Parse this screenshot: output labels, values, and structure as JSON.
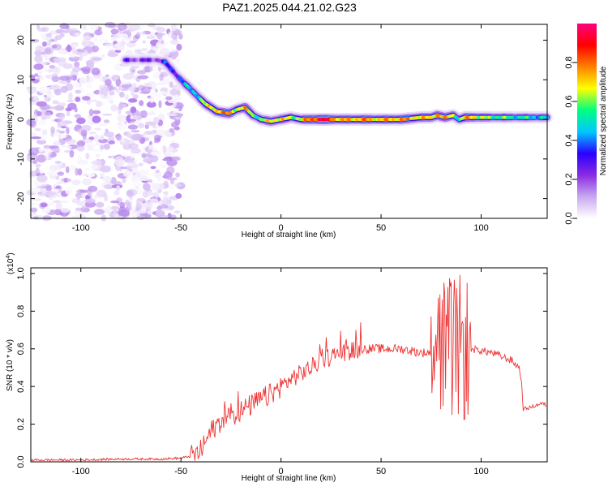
{
  "title": "PAZ1.2025.044.21.02.G23",
  "chart_data": [
    {
      "type": "heatmap",
      "xlabel": "Height of straight line (km)",
      "ylabel": "Frequency (Hz)",
      "xlim": [
        -125,
        133
      ],
      "ylim": [
        -25,
        24
      ],
      "xticks": [
        -100,
        -50,
        0,
        50,
        100
      ],
      "yticks": [
        -20,
        -10,
        0,
        10,
        20
      ],
      "x_tick_labels": [
        "-100",
        "-50",
        "0",
        "50",
        "100"
      ],
      "y_tick_labels": [
        "-20",
        "-10",
        "0",
        "10",
        "20"
      ],
      "colorbar": {
        "label": "Normalized spectral amplitude",
        "range": [
          0,
          1
        ],
        "ticks": [
          0.0,
          0.2,
          0.4,
          0.6,
          0.8
        ],
        "tick_labels": [
          "0.0",
          "0.2",
          "0.4",
          "0.6",
          "0.8"
        ],
        "colormap": [
          "#ffffff",
          "#c8a8f0",
          "#8a2be2",
          "#2a00ff",
          "#00c8ff",
          "#00ff80",
          "#ffff00",
          "#ff8000",
          "#ff0000",
          "#ff0080"
        ]
      },
      "noise_region_x": [
        -125,
        -50
      ],
      "ridge": {
        "x": [
          -78,
          -62,
          -58,
          -52,
          -45,
          -38,
          -32,
          -26,
          -22,
          -18,
          -14,
          -10,
          -5,
          0,
          5,
          10,
          20,
          30,
          40,
          50,
          60,
          70,
          75,
          78,
          82,
          86,
          89,
          92,
          96,
          100,
          110,
          120,
          133
        ],
        "frequency": [
          15,
          15,
          14.5,
          11,
          7.5,
          4,
          2,
          1.5,
          2.5,
          3,
          1,
          0,
          -0.5,
          0,
          0.5,
          0,
          0,
          0,
          0,
          0,
          0,
          0.5,
          0.5,
          1,
          0.5,
          1,
          0,
          0.5,
          0.5,
          0.5,
          0.5,
          0.5,
          0.5
        ],
        "amplitude": [
          0.22,
          0.22,
          0.3,
          0.35,
          0.45,
          0.6,
          0.75,
          0.75,
          0.65,
          0.7,
          0.6,
          0.55,
          0.7,
          0.7,
          0.6,
          0.65,
          0.95,
          0.7,
          0.75,
          0.7,
          0.75,
          0.7,
          0.65,
          0.8,
          0.7,
          0.65,
          0.5,
          0.7,
          0.75,
          0.6,
          0.55,
          0.5,
          0.45
        ]
      }
    },
    {
      "type": "line",
      "xlabel": "Height of straight line (km)",
      "ylabel": "SNR (10 * v/v)",
      "y_multiplier_label": "(x10",
      "y_multiplier_exp": "4",
      "xlim": [
        -125,
        133
      ],
      "ylim": [
        0,
        1.03
      ],
      "xticks": [
        -100,
        -50,
        0,
        50,
        100
      ],
      "yticks": [
        0.0,
        0.2,
        0.4,
        0.6,
        0.8,
        1.0
      ],
      "x_tick_labels": [
        "-100",
        "-50",
        "0",
        "50",
        "100"
      ],
      "y_tick_labels": [
        "0.0",
        "0.2",
        "0.4",
        "0.6",
        "0.8",
        "1.0"
      ],
      "color": "#ee3333",
      "series": [
        {
          "x": [
            -125,
            -100,
            -80,
            -60,
            -50,
            -45,
            -42,
            -40,
            -38,
            -35,
            -30,
            -25,
            -20,
            -15,
            -10,
            -5,
            0,
            5,
            10,
            15,
            20,
            25,
            30,
            35,
            40,
            45,
            50,
            55,
            60,
            65,
            70,
            75,
            80,
            85,
            88,
            90,
            92,
            95,
            100,
            105,
            110,
            115,
            119,
            120,
            121,
            125,
            130,
            133
          ],
          "values": [
            0.01,
            0.01,
            0.015,
            0.015,
            0.02,
            0.03,
            0.04,
            0.06,
            0.1,
            0.16,
            0.22,
            0.25,
            0.27,
            0.3,
            0.33,
            0.36,
            0.4,
            0.44,
            0.47,
            0.5,
            0.54,
            0.56,
            0.58,
            0.59,
            0.6,
            0.6,
            0.6,
            0.6,
            0.6,
            0.59,
            0.58,
            0.58,
            0.58,
            0.59,
            0.6,
            0.6,
            0.6,
            0.6,
            0.59,
            0.58,
            0.56,
            0.54,
            0.5,
            0.45,
            0.28,
            0.29,
            0.31,
            0.3
          ]
        }
      ]
    }
  ]
}
